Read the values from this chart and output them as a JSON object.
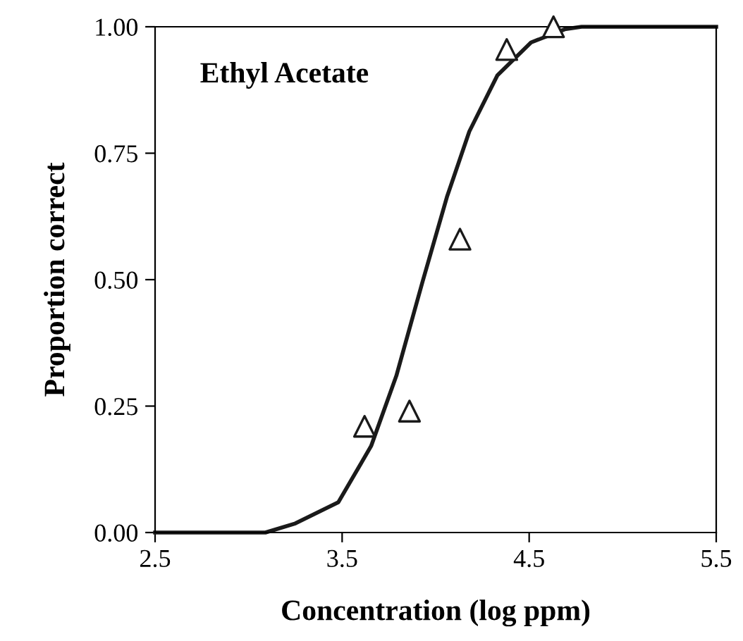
{
  "chart_data": {
    "type": "scatter",
    "xlabel": "Concentration (log ppm)",
    "ylabel": "Proportion correct",
    "annotations": [
      "Ethyl Acetate"
    ],
    "xlim": [
      2.5,
      5.5
    ],
    "xticks": [
      2.5,
      3.5,
      4.5,
      5.5
    ],
    "ylim": [
      0,
      1
    ],
    "yticks": [
      {
        "value": 0,
        "label": "0.00"
      },
      {
        "value": 0.25,
        "label": "0.25"
      },
      {
        "value": 0.5,
        "label": "0.50"
      },
      {
        "value": 0.75,
        "label": "0.75"
      },
      {
        "value": 1,
        "label": "1.00"
      }
    ],
    "grid": false,
    "legend": false,
    "series": [
      {
        "type": "line",
        "color": "#1a1a1a",
        "marker": "none",
        "line_style": "solid",
        "x": [
          2.5,
          3.09,
          3.25,
          3.48,
          3.655,
          3.79,
          3.93,
          4.06,
          4.18,
          4.33,
          4.51,
          4.69,
          4.78,
          5.5
        ],
        "values": [
          0,
          0,
          0.018,
          0.06,
          0.171,
          0.31,
          0.496,
          0.663,
          0.793,
          0.904,
          0.969,
          0.995,
          1.0,
          1.0
        ]
      },
      {
        "color": "#1a1a1a",
        "marker": "triangle",
        "x": [
          3.62,
          3.86,
          4.13,
          4.38,
          4.63
        ],
        "values": [
          0.21,
          0.24,
          0.58,
          0.955,
          1.0
        ]
      }
    ]
  }
}
